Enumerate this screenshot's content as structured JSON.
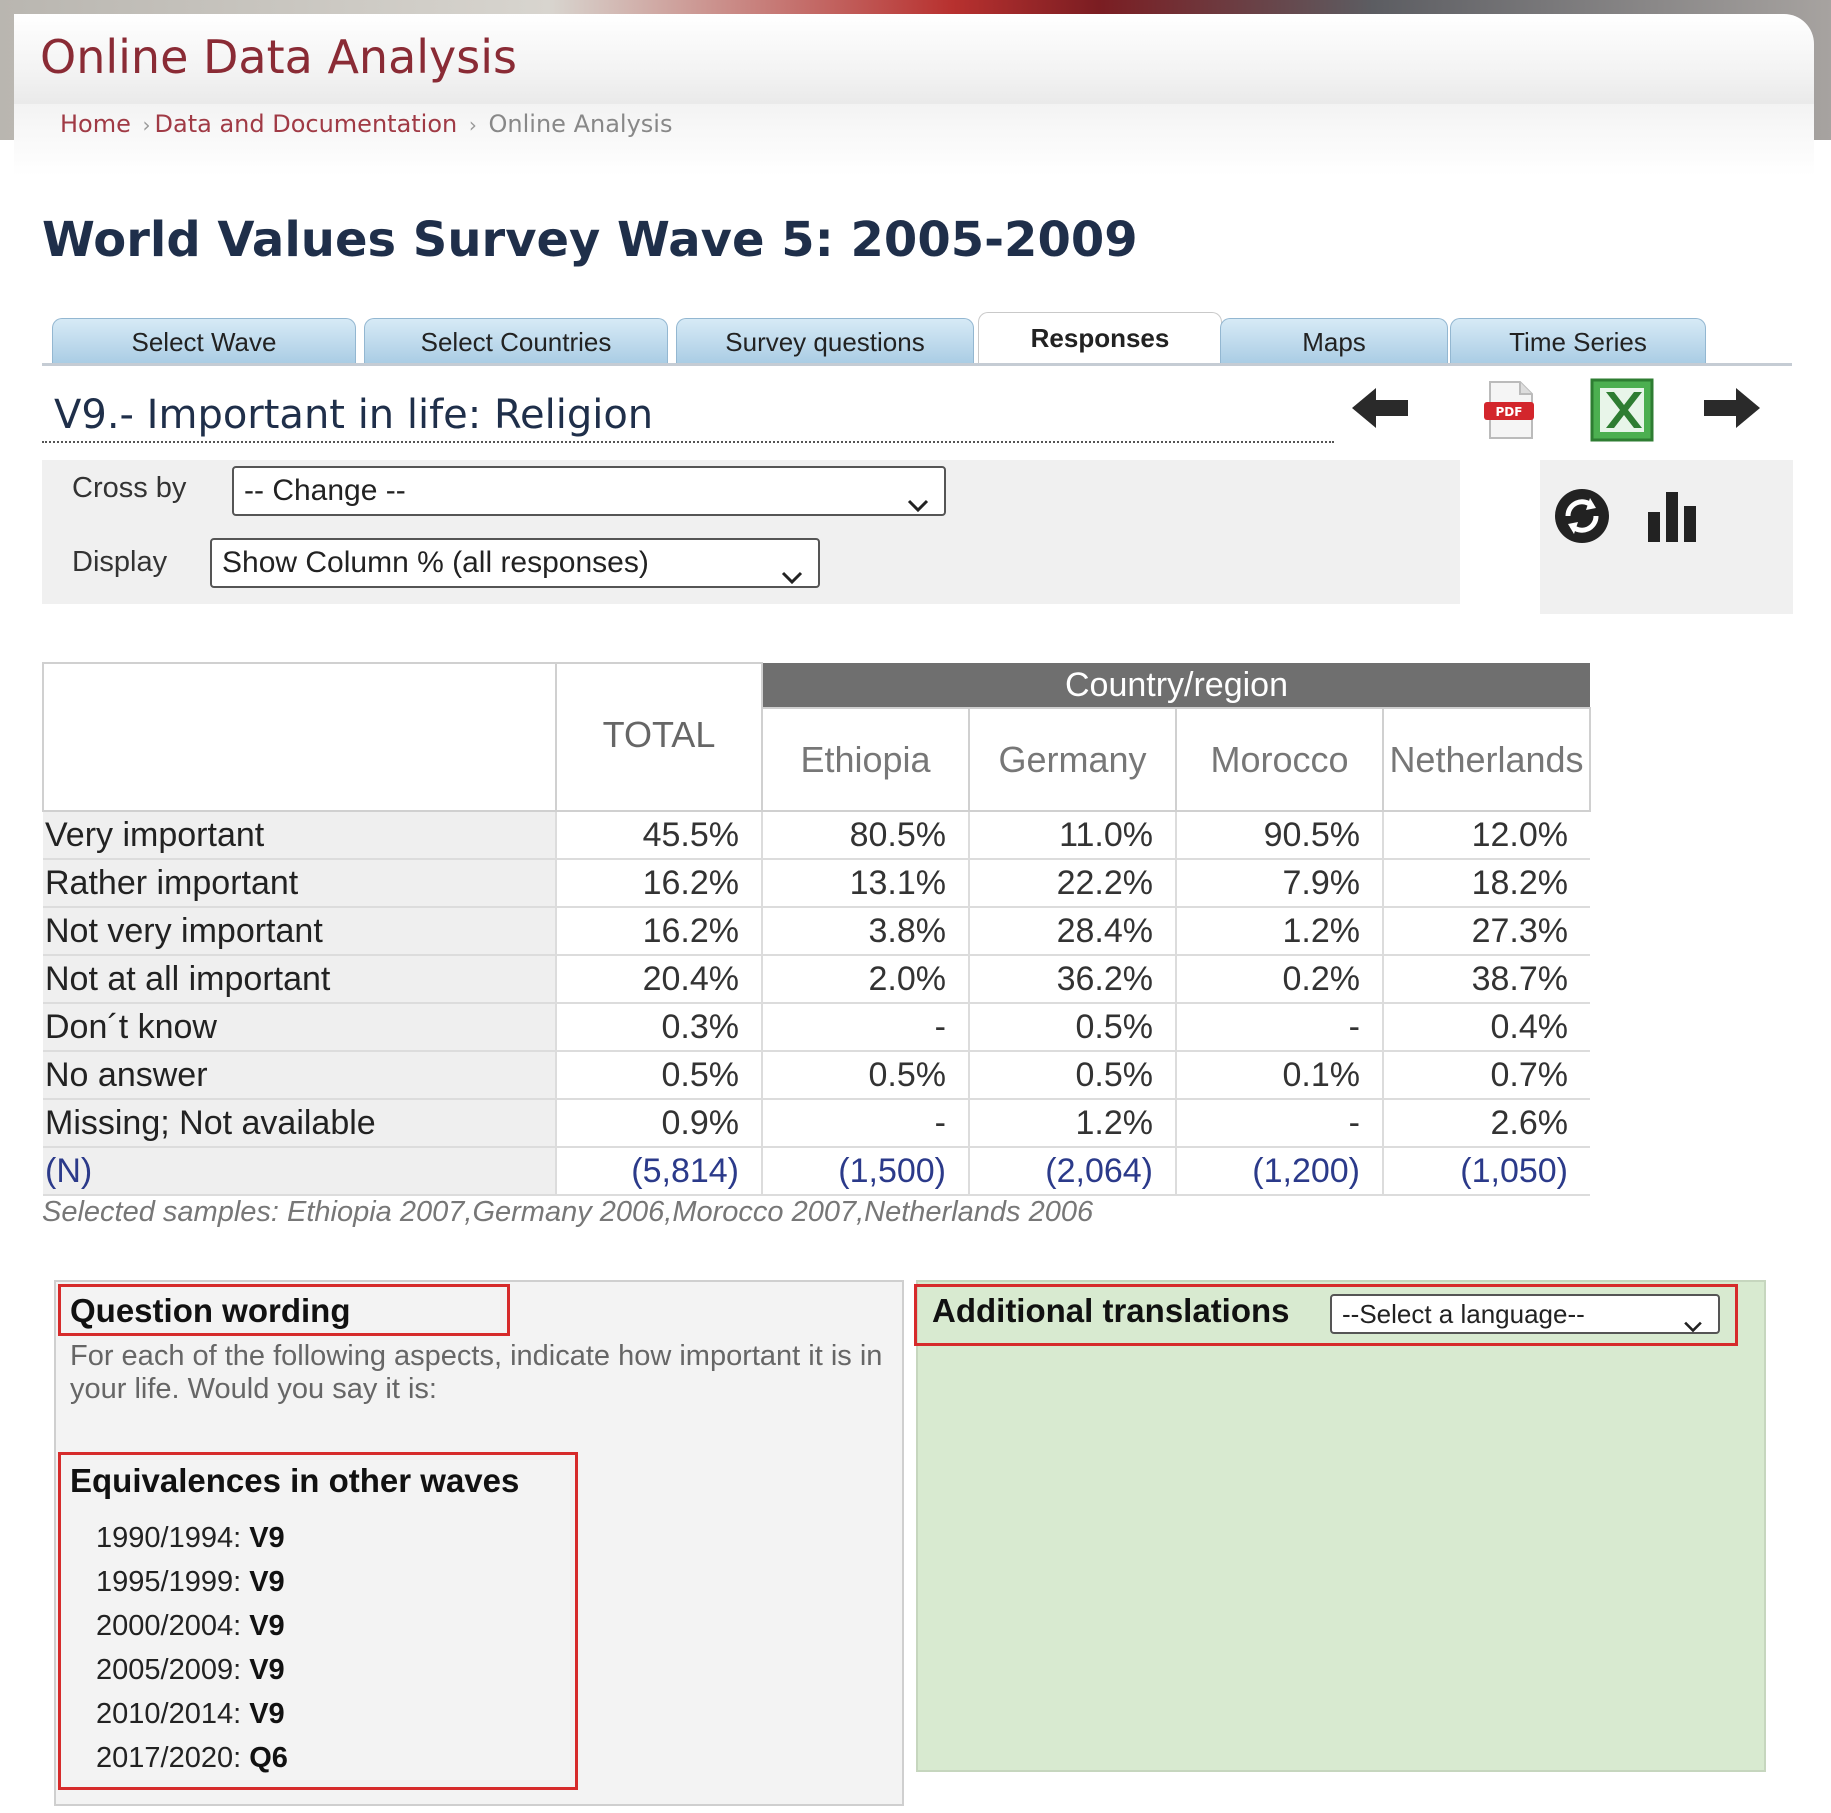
{
  "app_title": "Online Data Analysis",
  "breadcrumb": {
    "home": "Home",
    "data": "Data and Documentation",
    "current": "Online Analysis"
  },
  "page_title": "World Values Survey Wave 5: 2005-2009",
  "tabs": [
    {
      "label": "Select Wave"
    },
    {
      "label": "Select Countries"
    },
    {
      "label": "Survey questions"
    },
    {
      "label": "Responses",
      "active": true
    },
    {
      "label": "Maps"
    },
    {
      "label": "Time Series"
    }
  ],
  "variable_title": "V9.- Important in life: Religion",
  "toolbar": {
    "icons": [
      "back-arrow-icon",
      "pdf-icon",
      "excel-icon",
      "forward-arrow-icon",
      "refresh-icon",
      "bar-chart-icon"
    ]
  },
  "controls": {
    "cross_by_label": "Cross by",
    "cross_by_value": "-- Change --",
    "display_label": "Display",
    "display_value": "Show Column % (all responses)"
  },
  "table": {
    "total_header": "TOTAL",
    "group_header": "Country/region",
    "countries": [
      "Ethiopia",
      "Germany",
      "Morocco",
      "Netherlands"
    ],
    "rows": [
      {
        "label": "Very important",
        "total": "45.5%",
        "values": [
          "80.5%",
          "11.0%",
          "90.5%",
          "12.0%"
        ]
      },
      {
        "label": "Rather important",
        "total": "16.2%",
        "values": [
          "13.1%",
          "22.2%",
          "7.9%",
          "18.2%"
        ]
      },
      {
        "label": "Not very important",
        "total": "16.2%",
        "values": [
          "3.8%",
          "28.4%",
          "1.2%",
          "27.3%"
        ]
      },
      {
        "label": "Not at all important",
        "total": "20.4%",
        "values": [
          "2.0%",
          "36.2%",
          "0.2%",
          "38.7%"
        ]
      },
      {
        "label": "Don´t know",
        "total": "0.3%",
        "values": [
          "-",
          "0.5%",
          "-",
          "0.4%"
        ]
      },
      {
        "label": "No answer",
        "total": "0.5%",
        "values": [
          "0.5%",
          "0.5%",
          "0.1%",
          "0.7%"
        ]
      },
      {
        "label": "Missing; Not available",
        "total": "0.9%",
        "values": [
          "-",
          "1.2%",
          "-",
          "2.6%"
        ]
      },
      {
        "label": "(N)",
        "total": "(5,814)",
        "values": [
          "(1,500)",
          "(2,064)",
          "(1,200)",
          "(1,050)"
        ]
      }
    ]
  },
  "samples_note": "Selected samples: Ethiopia 2007,Germany 2006,Morocco 2007,Netherlands 2006",
  "question_wording": {
    "heading": "Question wording",
    "text": "For each of the following aspects, indicate how important it is in your life. Would you say it is:"
  },
  "equivalences": {
    "heading": "Equivalences in other waves",
    "items": [
      {
        "period": "1990/1994:",
        "code": "V9"
      },
      {
        "period": "1995/1999:",
        "code": "V9"
      },
      {
        "period": "2000/2004:",
        "code": "V9"
      },
      {
        "period": "2005/2009:",
        "code": "V9"
      },
      {
        "period": "2010/2014:",
        "code": "V9"
      },
      {
        "period": "2017/2020:",
        "code": "Q6"
      }
    ]
  },
  "translations": {
    "heading": "Additional translations",
    "select_value": "--Select a language--"
  },
  "colors": {
    "brand": "#8a2b35",
    "title": "#1f2f4a",
    "tab": "#a9cce4",
    "highlight": "#d62b2b",
    "translations_bg": "#d8ead0"
  }
}
